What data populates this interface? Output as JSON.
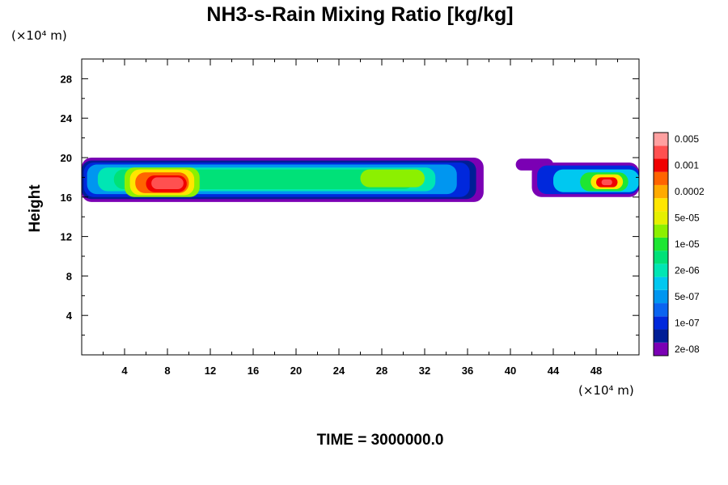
{
  "chart_data": {
    "type": "heatmap",
    "title": "NH3-s-Rain Mixing Ratio [kg/kg]",
    "ylabel": "Height",
    "y_unit": "(×10⁴ m)",
    "x_unit": "(×10⁴ m)",
    "xlim": [
      0,
      52
    ],
    "ylim": [
      0,
      30
    ],
    "x_ticks": [
      4,
      8,
      12,
      16,
      20,
      24,
      28,
      32,
      36,
      40,
      44,
      48
    ],
    "y_ticks": [
      4,
      8,
      12,
      16,
      20,
      24,
      28
    ],
    "time_label": "TIME = 3000000.0",
    "legend": {
      "placement": "right",
      "colors": [
        "#7b00b4",
        "#001e96",
        "#0028dc",
        "#0a64f0",
        "#0096f0",
        "#00c8f0",
        "#00e6b4",
        "#00e178",
        "#1ee632",
        "#8cf000",
        "#e6f000",
        "#ffe600",
        "#ffaa00",
        "#ff6400",
        "#f00000",
        "#ff5050",
        "#ffa0a0"
      ],
      "labels": [
        "2e-08",
        "1e-07",
        "5e-07",
        "2e-06",
        "1e-05",
        "5e-05",
        "0.0002",
        "0.001",
        "0.005"
      ]
    },
    "regions": [
      {
        "x": [
          0,
          37.5
        ],
        "y": [
          15.5,
          20
        ],
        "level": 0
      },
      {
        "x": [
          0,
          36.8
        ],
        "y": [
          15.8,
          19.7
        ],
        "level": 1
      },
      {
        "x": [
          0.2,
          36.2
        ],
        "y": [
          16,
          19.5
        ],
        "level": 2
      },
      {
        "x": [
          0.5,
          35
        ],
        "y": [
          16.3,
          19.3
        ],
        "level": 4
      },
      {
        "x": [
          1.5,
          33
        ],
        "y": [
          16.6,
          19
        ],
        "level": 6
      },
      {
        "x": [
          3,
          31
        ],
        "y": [
          16.8,
          18.8
        ],
        "level": 7
      },
      {
        "x": [
          4,
          11
        ],
        "y": [
          16,
          19
        ],
        "level": 9
      },
      {
        "x": [
          4.5,
          10.5
        ],
        "y": [
          16.2,
          18.8
        ],
        "level": 11
      },
      {
        "x": [
          5,
          10
        ],
        "y": [
          16.4,
          18.5
        ],
        "level": 13
      },
      {
        "x": [
          6,
          9.8
        ],
        "y": [
          16.5,
          18.2
        ],
        "level": 14
      },
      {
        "x": [
          6.5,
          9.5
        ],
        "y": [
          16.8,
          18
        ],
        "level": 15
      },
      {
        "x": [
          26,
          32
        ],
        "y": [
          17,
          18.8
        ],
        "level": 9
      },
      {
        "x": [
          40.5,
          44
        ],
        "y": [
          18.7,
          19.9
        ],
        "level": 0
      },
      {
        "x": [
          42,
          52
        ],
        "y": [
          16,
          19.5
        ],
        "level": 0
      },
      {
        "x": [
          42.5,
          52
        ],
        "y": [
          16.3,
          19.2
        ],
        "level": 2
      },
      {
        "x": [
          44,
          52
        ],
        "y": [
          16.5,
          18.8
        ],
        "level": 5
      },
      {
        "x": [
          46.5,
          51
        ],
        "y": [
          16.6,
          18.5
        ],
        "level": 8
      },
      {
        "x": [
          47.5,
          50.5
        ],
        "y": [
          16.8,
          18.3
        ],
        "level": 11
      },
      {
        "x": [
          48,
          50
        ],
        "y": [
          17,
          18
        ],
        "level": 14
      },
      {
        "x": [
          48.5,
          49.5
        ],
        "y": [
          17.2,
          17.8
        ],
        "level": 15
      }
    ]
  }
}
